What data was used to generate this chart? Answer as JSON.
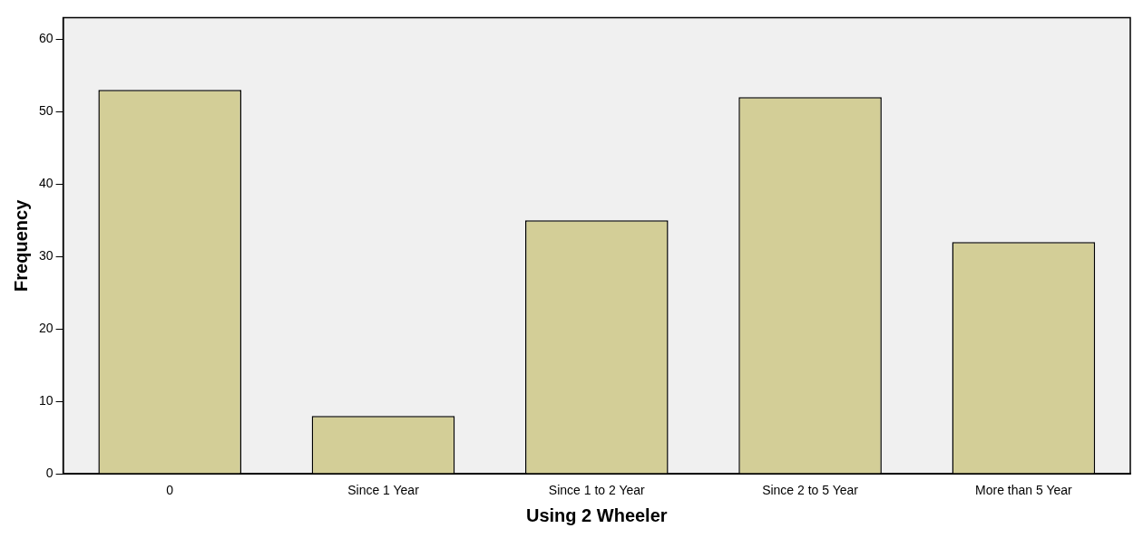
{
  "chart_data": {
    "type": "bar",
    "xlabel": "Using 2 Wheeler",
    "ylabel": "Frequency",
    "categories": [
      "0",
      "Since 1 Year",
      "Since 1 to 2 Year",
      "Since 2 to 5 Year",
      "More than 5 Year"
    ],
    "values": [
      53,
      8,
      35,
      52,
      32
    ],
    "color": "#d3ce97",
    "ylim": [
      0,
      63
    ],
    "yticks": [
      0,
      10,
      20,
      30,
      40,
      50,
      60
    ],
    "grid": false,
    "legend": false
  }
}
